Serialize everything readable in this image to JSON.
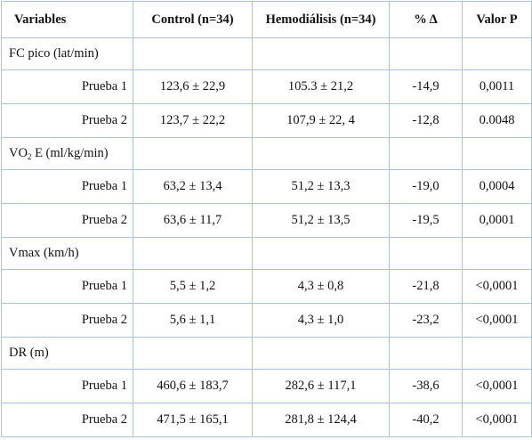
{
  "table": {
    "headers": [
      "Variables",
      "Control (n=34)",
      "Hemodiálisis (n=34)",
      "% Δ",
      "Valor P"
    ],
    "groups": [
      {
        "label": "FC pico (lat/min)",
        "rows": [
          {
            "test": "Prueba 1",
            "control": "123,6 ± 22,9",
            "hemodialisis": "105.3 ± 21,2",
            "delta": "-14,9",
            "p": "0,0011"
          },
          {
            "test": "Prueba 2",
            "control": "123,7 ± 22,2",
            "hemodialisis": "107,9 ± 22, 4",
            "delta": "-12,8",
            "p": "0.0048"
          }
        ]
      },
      {
        "label_pre": "VO",
        "label_sub": "2",
        "label_post": " E (ml/kg/min)",
        "rows": [
          {
            "test": "Prueba 1",
            "control": "63,2 ± 13,4",
            "hemodialisis": "51,2 ± 13,3",
            "delta": "-19,0",
            "p": "0,0004"
          },
          {
            "test": "Prueba 2",
            "control": "63,6 ± 11,7",
            "hemodialisis": "51,2 ± 13,5",
            "delta": "-19,5",
            "p": "0,0001"
          }
        ]
      },
      {
        "label": "Vmax (km/h)",
        "rows": [
          {
            "test": "Prueba 1",
            "control": "5,5 ± 1,2",
            "hemodialisis": "4,3 ± 0,8",
            "delta": "-21,8",
            "p": "<0,0001"
          },
          {
            "test": "Prueba 2",
            "control": "5,6 ± 1,1",
            "hemodialisis": "4,3 ± 1,0",
            "delta": "-23,2",
            "p": "<0,0001"
          }
        ]
      },
      {
        "label": "DR (m)",
        "rows": [
          {
            "test": "Prueba 1",
            "control": "460,6 ± 183,7",
            "hemodialisis": "282,6 ± 117,1",
            "delta": "-38,6",
            "p": "<0,0001"
          },
          {
            "test": "Prueba 2",
            "control": "471,5 ± 165,1",
            "hemodialisis": "281,8 ± 124,4",
            "delta": "-40,2",
            "p": "<0,0001"
          }
        ]
      }
    ]
  }
}
